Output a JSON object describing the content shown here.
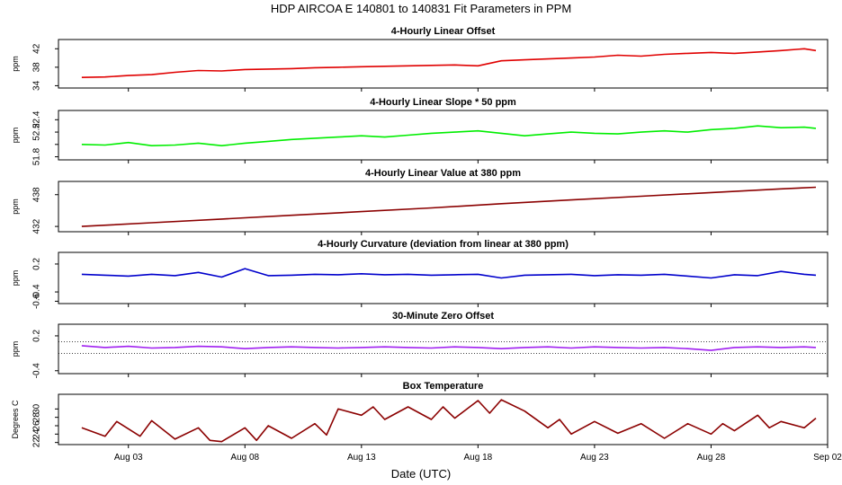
{
  "figure": {
    "title": "HDP   AIRCOA E   140801 to 140831   Fit Parameters in PPM",
    "xlabel": "Date (UTC)"
  },
  "chart_data": {
    "type": "line",
    "x_domain": [
      "2014-07-31",
      "2014-09-02"
    ],
    "x_ticks": [
      {
        "date": "2014-08-03",
        "label": "Aug 03"
      },
      {
        "date": "2014-08-08",
        "label": "Aug 08"
      },
      {
        "date": "2014-08-13",
        "label": "Aug 13"
      },
      {
        "date": "2014-08-18",
        "label": "Aug 18"
      },
      {
        "date": "2014-08-23",
        "label": "Aug 23"
      },
      {
        "date": "2014-08-28",
        "label": "Aug 28"
      },
      {
        "date": "2014-09-02",
        "label": "Sep 02"
      }
    ],
    "panels": [
      {
        "title": "4-Hourly Linear Offset",
        "ylabel": "ppm",
        "ylim": [
          33.5,
          44
        ],
        "yticks": [
          34,
          38,
          42
        ],
        "color": "#e00000",
        "ref_lines": [],
        "series": [
          [
            "2014-08-01",
            35.8
          ],
          [
            "2014-08-02",
            35.9
          ],
          [
            "2014-08-03",
            36.2
          ],
          [
            "2014-08-04",
            36.4
          ],
          [
            "2014-08-05",
            36.9
          ],
          [
            "2014-08-06",
            37.3
          ],
          [
            "2014-08-07",
            37.2
          ],
          [
            "2014-08-08",
            37.5
          ],
          [
            "2014-08-09",
            37.6
          ],
          [
            "2014-08-10",
            37.7
          ],
          [
            "2014-08-11",
            37.9
          ],
          [
            "2014-08-12",
            38.0
          ],
          [
            "2014-08-13",
            38.1
          ],
          [
            "2014-08-14",
            38.2
          ],
          [
            "2014-08-15",
            38.3
          ],
          [
            "2014-08-16",
            38.4
          ],
          [
            "2014-08-17",
            38.5
          ],
          [
            "2014-08-18",
            38.3
          ],
          [
            "2014-08-19",
            39.4
          ],
          [
            "2014-08-20",
            39.6
          ],
          [
            "2014-08-21",
            39.8
          ],
          [
            "2014-08-22",
            40.0
          ],
          [
            "2014-08-23",
            40.2
          ],
          [
            "2014-08-24",
            40.6
          ],
          [
            "2014-08-25",
            40.4
          ],
          [
            "2014-08-26",
            40.8
          ],
          [
            "2014-08-27",
            41.0
          ],
          [
            "2014-08-28",
            41.2
          ],
          [
            "2014-08-29",
            41.0
          ],
          [
            "2014-08-30",
            41.3
          ],
          [
            "2014-08-31",
            41.6
          ],
          [
            "2014-09-01",
            42.0
          ],
          [
            "2014-09-01T12:00",
            41.6
          ]
        ]
      },
      {
        "title": "4-Hourly Linear Slope * 50 ppm",
        "ylabel": "ppm",
        "ylim": [
          51.75,
          52.55
        ],
        "yticks": [
          51.8,
          52.0,
          52.2,
          52.4
        ],
        "yticklabels": [
          "51.8",
          "",
          "52.2",
          "52.4"
        ],
        "color": "#00ee00",
        "ref_lines": [],
        "series": [
          [
            "2014-08-01",
            52.0
          ],
          [
            "2014-08-02",
            51.99
          ],
          [
            "2014-08-03",
            52.03
          ],
          [
            "2014-08-04",
            51.98
          ],
          [
            "2014-08-05",
            51.99
          ],
          [
            "2014-08-06",
            52.02
          ],
          [
            "2014-08-07",
            51.98
          ],
          [
            "2014-08-08",
            52.02
          ],
          [
            "2014-08-09",
            52.05
          ],
          [
            "2014-08-10",
            52.08
          ],
          [
            "2014-08-11",
            52.1
          ],
          [
            "2014-08-12",
            52.12
          ],
          [
            "2014-08-13",
            52.14
          ],
          [
            "2014-08-14",
            52.12
          ],
          [
            "2014-08-15",
            52.15
          ],
          [
            "2014-08-16",
            52.18
          ],
          [
            "2014-08-17",
            52.2
          ],
          [
            "2014-08-18",
            52.22
          ],
          [
            "2014-08-19",
            52.18
          ],
          [
            "2014-08-20",
            52.14
          ],
          [
            "2014-08-21",
            52.17
          ],
          [
            "2014-08-22",
            52.2
          ],
          [
            "2014-08-23",
            52.18
          ],
          [
            "2014-08-24",
            52.17
          ],
          [
            "2014-08-25",
            52.2
          ],
          [
            "2014-08-26",
            52.22
          ],
          [
            "2014-08-27",
            52.2
          ],
          [
            "2014-08-28",
            52.24
          ],
          [
            "2014-08-29",
            52.26
          ],
          [
            "2014-08-30",
            52.3
          ],
          [
            "2014-08-31",
            52.27
          ],
          [
            "2014-09-01",
            52.28
          ],
          [
            "2014-09-01T12:00",
            52.26
          ]
        ]
      },
      {
        "title": "4-Hourly Linear Value at 380 ppm",
        "ylabel": "ppm",
        "ylim": [
          431,
          440.5
        ],
        "yticks": [
          432,
          438
        ],
        "color": "#8b0000",
        "ref_lines": [],
        "series": [
          [
            "2014-08-01",
            432.0
          ],
          [
            "2014-08-04",
            432.7
          ],
          [
            "2014-08-07",
            433.4
          ],
          [
            "2014-08-10",
            434.1
          ],
          [
            "2014-08-13",
            434.8
          ],
          [
            "2014-08-16",
            435.5
          ],
          [
            "2014-08-19",
            436.3
          ],
          [
            "2014-08-22",
            437.0
          ],
          [
            "2014-08-25",
            437.7
          ],
          [
            "2014-08-28",
            438.4
          ],
          [
            "2014-08-31",
            439.1
          ],
          [
            "2014-09-01T12:00",
            439.4
          ]
        ]
      },
      {
        "title": "4-Hourly Curvature (deviation from linear at 380 ppm)",
        "ylabel": "ppm",
        "ylim": [
          -0.65,
          0.45
        ],
        "yticks": [
          -0.6,
          -0.4,
          0.2
        ],
        "color": "#0000cc",
        "ref_lines": [],
        "series": [
          [
            "2014-08-01",
            -0.02
          ],
          [
            "2014-08-02",
            -0.04
          ],
          [
            "2014-08-03",
            -0.06
          ],
          [
            "2014-08-04",
            -0.02
          ],
          [
            "2014-08-05",
            -0.05
          ],
          [
            "2014-08-06",
            0.02
          ],
          [
            "2014-08-07",
            -0.08
          ],
          [
            "2014-08-08",
            0.1
          ],
          [
            "2014-08-09",
            -0.05
          ],
          [
            "2014-08-10",
            -0.04
          ],
          [
            "2014-08-11",
            -0.02
          ],
          [
            "2014-08-12",
            -0.03
          ],
          [
            "2014-08-13",
            -0.01
          ],
          [
            "2014-08-14",
            -0.03
          ],
          [
            "2014-08-15",
            -0.02
          ],
          [
            "2014-08-16",
            -0.04
          ],
          [
            "2014-08-17",
            -0.03
          ],
          [
            "2014-08-18",
            -0.02
          ],
          [
            "2014-08-19",
            -0.1
          ],
          [
            "2014-08-20",
            -0.04
          ],
          [
            "2014-08-21",
            -0.03
          ],
          [
            "2014-08-22",
            -0.02
          ],
          [
            "2014-08-23",
            -0.05
          ],
          [
            "2014-08-24",
            -0.03
          ],
          [
            "2014-08-25",
            -0.04
          ],
          [
            "2014-08-26",
            -0.02
          ],
          [
            "2014-08-27",
            -0.06
          ],
          [
            "2014-08-28",
            -0.1
          ],
          [
            "2014-08-29",
            -0.03
          ],
          [
            "2014-08-30",
            -0.05
          ],
          [
            "2014-08-31",
            0.04
          ],
          [
            "2014-09-01",
            -0.02
          ],
          [
            "2014-09-01T12:00",
            -0.04
          ]
        ]
      },
      {
        "title": "30-Minute Zero Offset",
        "ylabel": "ppm",
        "ylim": [
          -0.45,
          0.4
        ],
        "yticks": [
          -0.4,
          0.2
        ],
        "color": "#a020f0",
        "ref_lines": [
          0.1,
          -0.1
        ],
        "series": [
          [
            "2014-08-01",
            0.03
          ],
          [
            "2014-08-02",
            0.0
          ],
          [
            "2014-08-03",
            0.02
          ],
          [
            "2014-08-04",
            -0.01
          ],
          [
            "2014-08-05",
            0.0
          ],
          [
            "2014-08-06",
            0.02
          ],
          [
            "2014-08-07",
            0.01
          ],
          [
            "2014-08-08",
            -0.02
          ],
          [
            "2014-08-09",
            0.0
          ],
          [
            "2014-08-10",
            0.01
          ],
          [
            "2014-08-11",
            0.0
          ],
          [
            "2014-08-12",
            -0.01
          ],
          [
            "2014-08-13",
            0.0
          ],
          [
            "2014-08-14",
            0.01
          ],
          [
            "2014-08-15",
            0.0
          ],
          [
            "2014-08-16",
            -0.01
          ],
          [
            "2014-08-17",
            0.01
          ],
          [
            "2014-08-18",
            0.0
          ],
          [
            "2014-08-19",
            -0.02
          ],
          [
            "2014-08-20",
            0.0
          ],
          [
            "2014-08-21",
            0.01
          ],
          [
            "2014-08-22",
            -0.01
          ],
          [
            "2014-08-23",
            0.01
          ],
          [
            "2014-08-24",
            0.0
          ],
          [
            "2014-08-25",
            -0.01
          ],
          [
            "2014-08-26",
            0.0
          ],
          [
            "2014-08-27",
            -0.02
          ],
          [
            "2014-08-28",
            -0.05
          ],
          [
            "2014-08-29",
            0.0
          ],
          [
            "2014-08-30",
            0.01
          ],
          [
            "2014-08-31",
            0.0
          ],
          [
            "2014-09-01",
            0.01
          ],
          [
            "2014-09-01T12:00",
            0.0
          ]
        ]
      },
      {
        "title": "Box Temperature",
        "ylabel": "Degrees C",
        "ylim": [
          21.5,
          33.5
        ],
        "yticks": [
          22,
          24,
          26,
          28,
          30
        ],
        "color": "#8b0000",
        "ref_lines": [],
        "series": [
          [
            "2014-08-01",
            25.5
          ],
          [
            "2014-08-02",
            23.5
          ],
          [
            "2014-08-02T12:00",
            27.0
          ],
          [
            "2014-08-03T12:00",
            23.5
          ],
          [
            "2014-08-04",
            27.2
          ],
          [
            "2014-08-05",
            22.8
          ],
          [
            "2014-08-06",
            25.5
          ],
          [
            "2014-08-06T12:00",
            22.5
          ],
          [
            "2014-08-07",
            22.2
          ],
          [
            "2014-08-08",
            25.5
          ],
          [
            "2014-08-08T12:00",
            22.5
          ],
          [
            "2014-08-09",
            26.0
          ],
          [
            "2014-08-10",
            23.0
          ],
          [
            "2014-08-11",
            26.5
          ],
          [
            "2014-08-11T12:00",
            23.8
          ],
          [
            "2014-08-12",
            30.0
          ],
          [
            "2014-08-13",
            28.5
          ],
          [
            "2014-08-13T12:00",
            30.5
          ],
          [
            "2014-08-14",
            27.5
          ],
          [
            "2014-08-15",
            30.5
          ],
          [
            "2014-08-16",
            27.5
          ],
          [
            "2014-08-16T12:00",
            30.5
          ],
          [
            "2014-08-17",
            27.8
          ],
          [
            "2014-08-18",
            32.0
          ],
          [
            "2014-08-18T12:00",
            29.0
          ],
          [
            "2014-08-19",
            32.2
          ],
          [
            "2014-08-20",
            29.5
          ],
          [
            "2014-08-21",
            25.5
          ],
          [
            "2014-08-21T12:00",
            27.5
          ],
          [
            "2014-08-22",
            24.0
          ],
          [
            "2014-08-23",
            27.0
          ],
          [
            "2014-08-24",
            24.2
          ],
          [
            "2014-08-25",
            26.5
          ],
          [
            "2014-08-26",
            23.0
          ],
          [
            "2014-08-27",
            26.5
          ],
          [
            "2014-08-28",
            24.0
          ],
          [
            "2014-08-28T12:00",
            26.5
          ],
          [
            "2014-08-29",
            24.8
          ],
          [
            "2014-08-30",
            28.5
          ],
          [
            "2014-08-30T12:00",
            25.5
          ],
          [
            "2014-08-31",
            27.0
          ],
          [
            "2014-09-01",
            25.5
          ],
          [
            "2014-09-01T12:00",
            27.8
          ]
        ]
      }
    ]
  }
}
